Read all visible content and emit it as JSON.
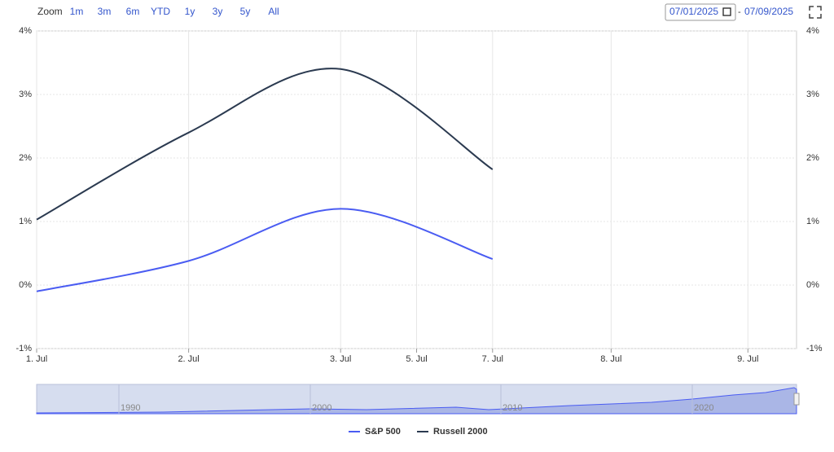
{
  "toolbar": {
    "zoom_label": "Zoom",
    "ranges": [
      "1m",
      "3m",
      "6m",
      "YTD",
      "1y",
      "3y",
      "5y",
      "All"
    ],
    "date_from": "07/01/2025",
    "date_to": "07/09/2025"
  },
  "chart_data": {
    "type": "line",
    "categories": [
      "1. Jul",
      "2. Jul",
      "3. Jul",
      "7. Jul"
    ],
    "series": [
      {
        "name": "S&P 500",
        "color": "#4a5cf2",
        "values": [
          -0.1,
          0.38,
          1.2,
          0.41
        ]
      },
      {
        "name": "Russell 2000",
        "color": "#2b3a50",
        "values": [
          1.03,
          2.4,
          3.4,
          1.82
        ]
      }
    ],
    "xlim": [
      0,
      5
    ],
    "xticks": [
      {
        "value": 0,
        "label": "1. Jul"
      },
      {
        "value": 1,
        "label": "2. Jul"
      },
      {
        "value": 2,
        "label": "3. Jul"
      },
      {
        "value": 2.5,
        "label": "5. Jul"
      },
      {
        "value": 3,
        "label": "7. Jul"
      },
      {
        "value": 3.78,
        "label": "8. Jul"
      },
      {
        "value": 4.68,
        "label": "9. Jul"
      }
    ],
    "ylim": [
      -1,
      4
    ],
    "yticks": [
      {
        "value": -1,
        "label": "-1%"
      },
      {
        "value": 0,
        "label": "0%"
      },
      {
        "value": 1,
        "label": "1%"
      },
      {
        "value": 2,
        "label": "2%"
      },
      {
        "value": 3,
        "label": "3%"
      },
      {
        "value": 4,
        "label": "4%"
      }
    ],
    "grid": true,
    "legend": "bottom"
  },
  "navigator": {
    "labels": [
      "1990",
      "2000",
      "2010",
      "2020"
    ]
  }
}
